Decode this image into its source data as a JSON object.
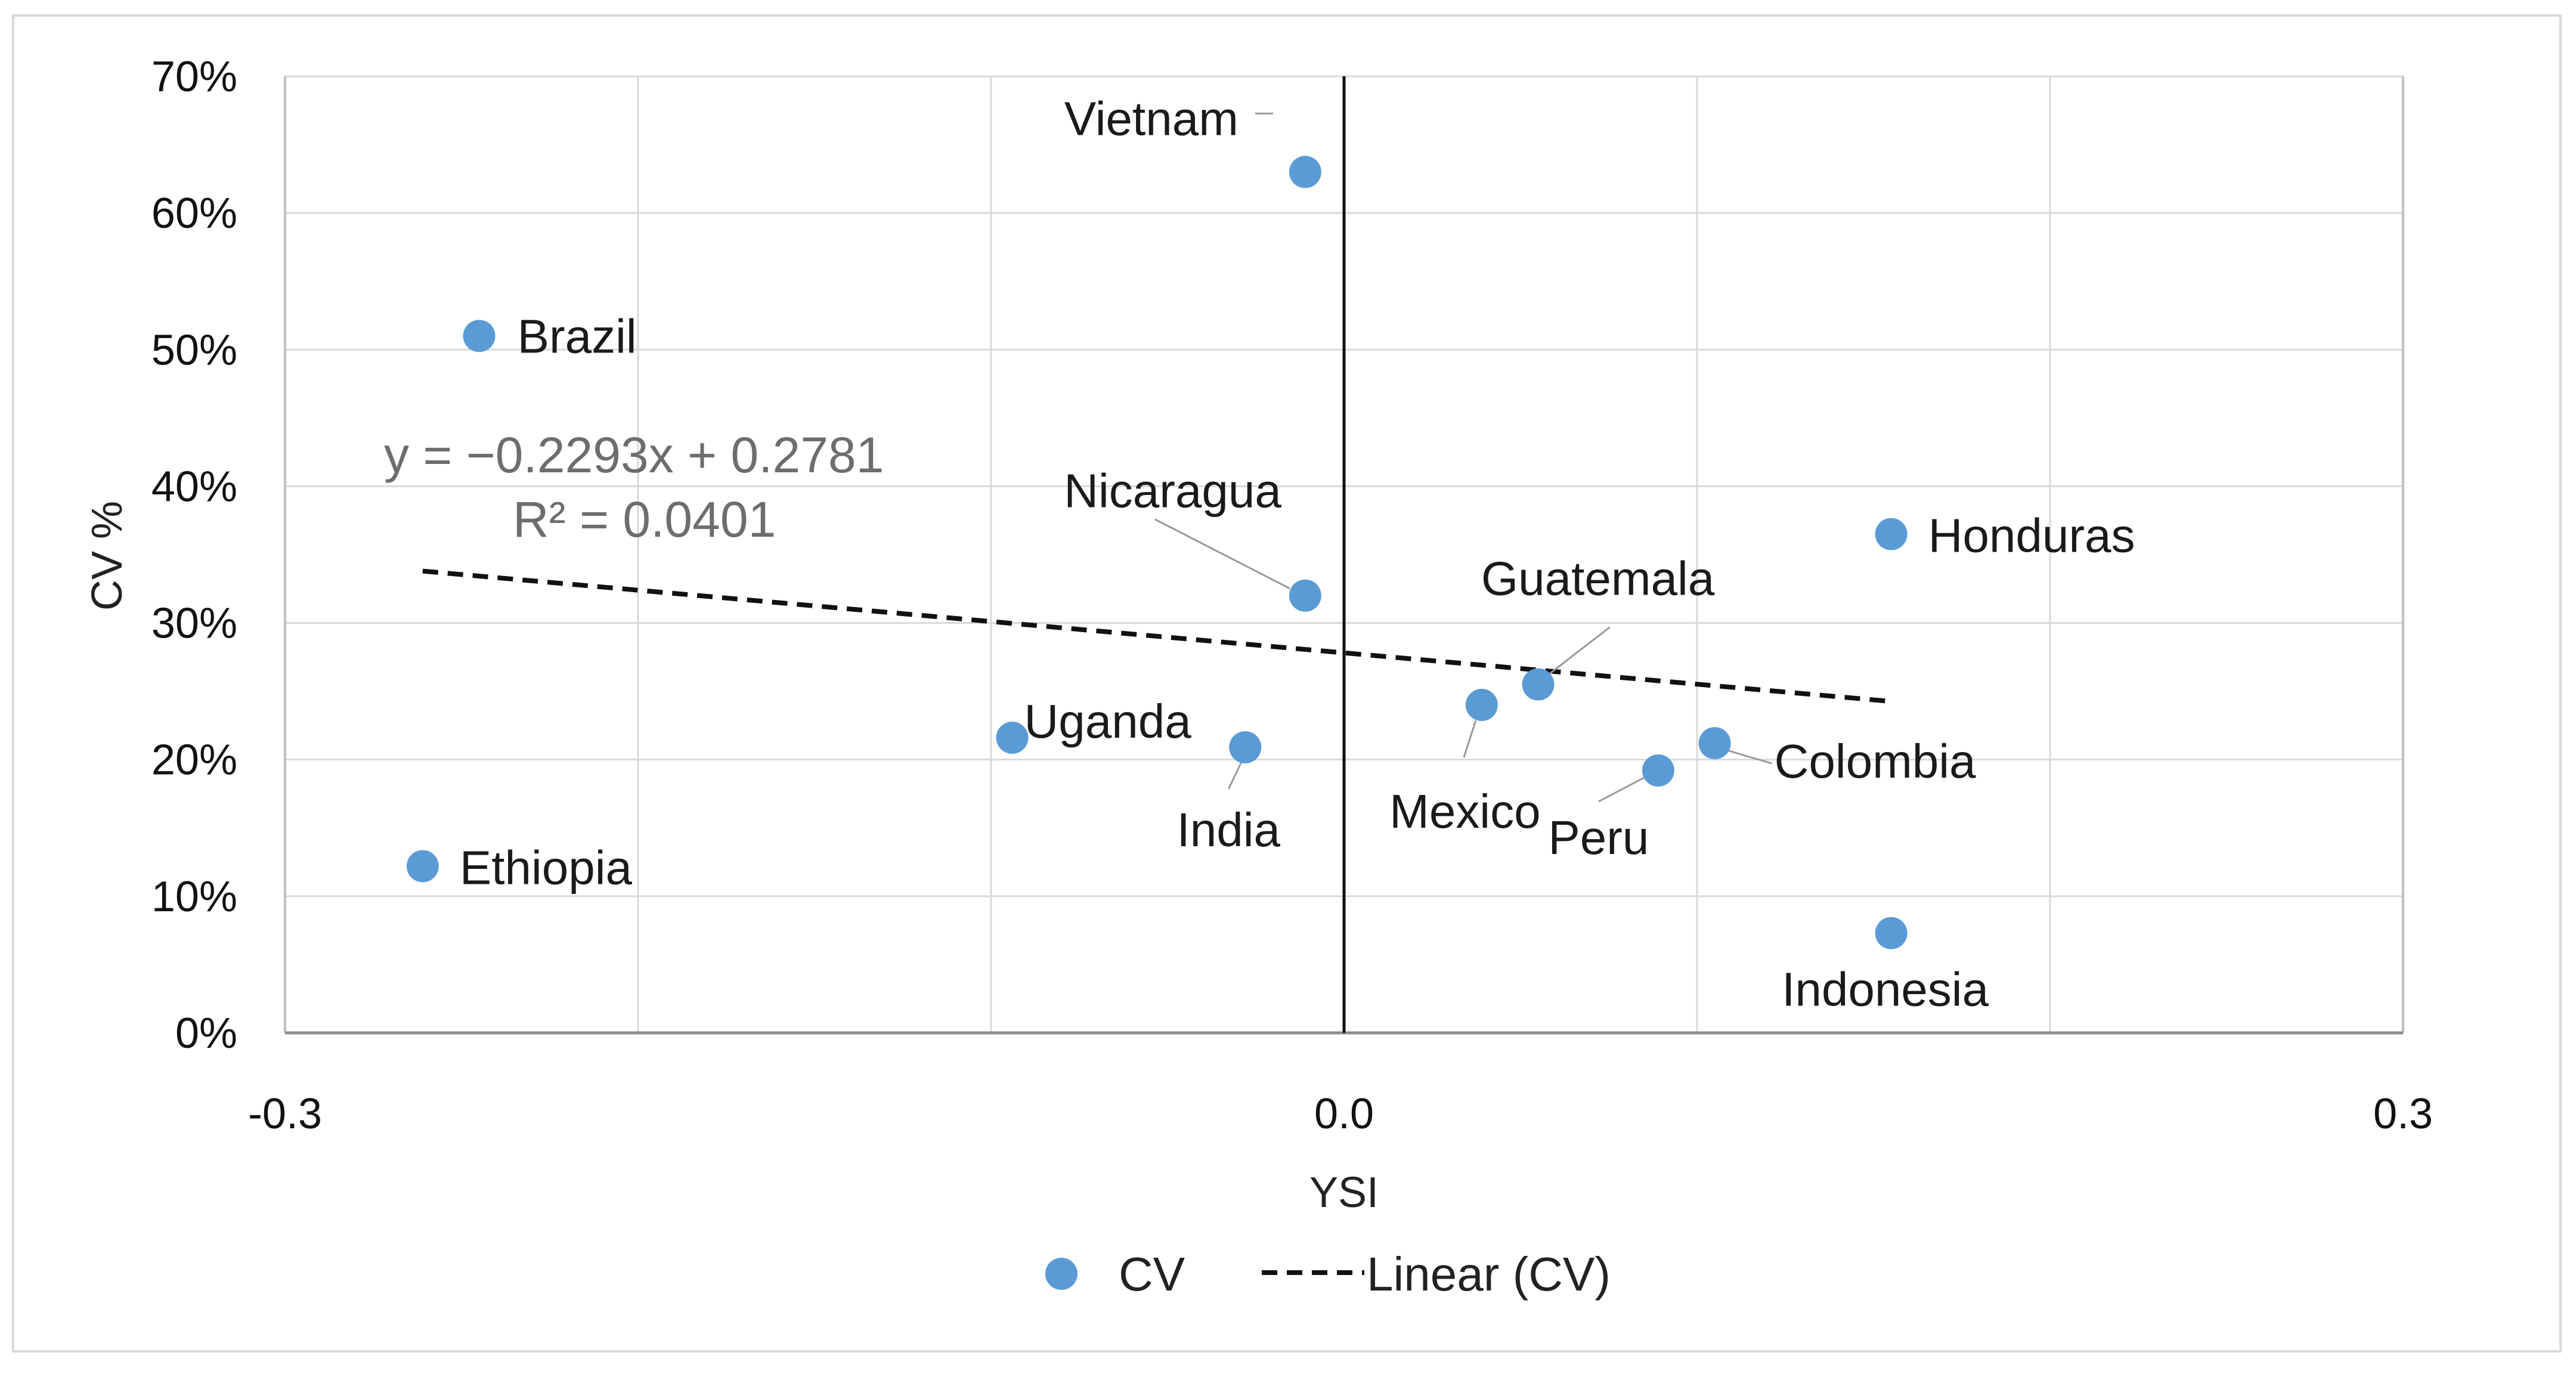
{
  "chart_data": {
    "type": "scatter",
    "xlabel": "YSI",
    "ylabel": "CV %",
    "xlim": [
      -0.3,
      0.3
    ],
    "ylim": [
      0,
      0.7
    ],
    "x_ticks": [
      -0.3,
      0.0,
      0.3
    ],
    "x_tick_labels": [
      "-0.3",
      "0.0",
      "0.3"
    ],
    "y_ticks": [
      0,
      0.1,
      0.2,
      0.3,
      0.4,
      0.5,
      0.6,
      0.7
    ],
    "y_tick_labels": [
      "0%",
      "10%",
      "20%",
      "30%",
      "40%",
      "50%",
      "60%",
      "70%"
    ],
    "grid": true,
    "colors": {
      "point": "#5b9bd5",
      "trend": "#111111",
      "leader": "#999999",
      "grid": "#d9d9d9"
    },
    "series": [
      {
        "name": "CV",
        "points": [
          {
            "label": "Vietnam",
            "x": -0.011,
            "y": 0.63
          },
          {
            "label": "Brazil",
            "x": -0.245,
            "y": 0.51
          },
          {
            "label": "Nicaragua",
            "x": -0.011,
            "y": 0.32
          },
          {
            "label": "Honduras",
            "x": 0.155,
            "y": 0.365
          },
          {
            "label": "Guatemala",
            "x": 0.055,
            "y": 0.255
          },
          {
            "label": "Mexico",
            "x": 0.039,
            "y": 0.24
          },
          {
            "label": "Uganda",
            "x": -0.094,
            "y": 0.216
          },
          {
            "label": "India",
            "x": -0.028,
            "y": 0.209
          },
          {
            "label": "Colombia",
            "x": 0.105,
            "y": 0.212
          },
          {
            "label": "Peru",
            "x": 0.089,
            "y": 0.192
          },
          {
            "label": "Ethiopia",
            "x": -0.261,
            "y": 0.122
          },
          {
            "label": "Indonesia",
            "x": 0.155,
            "y": 0.073
          }
        ]
      }
    ],
    "trendline": {
      "name": "Linear (CV)",
      "slope": -0.2293,
      "intercept": 0.2781,
      "x_range": [
        -0.261,
        0.155
      ],
      "equation": "y = −0.2293x + 0.2781",
      "r_squared": "R² = 0.0401"
    },
    "legend": [
      "CV",
      "Linear (CV)"
    ],
    "legend_position": "bottom"
  }
}
